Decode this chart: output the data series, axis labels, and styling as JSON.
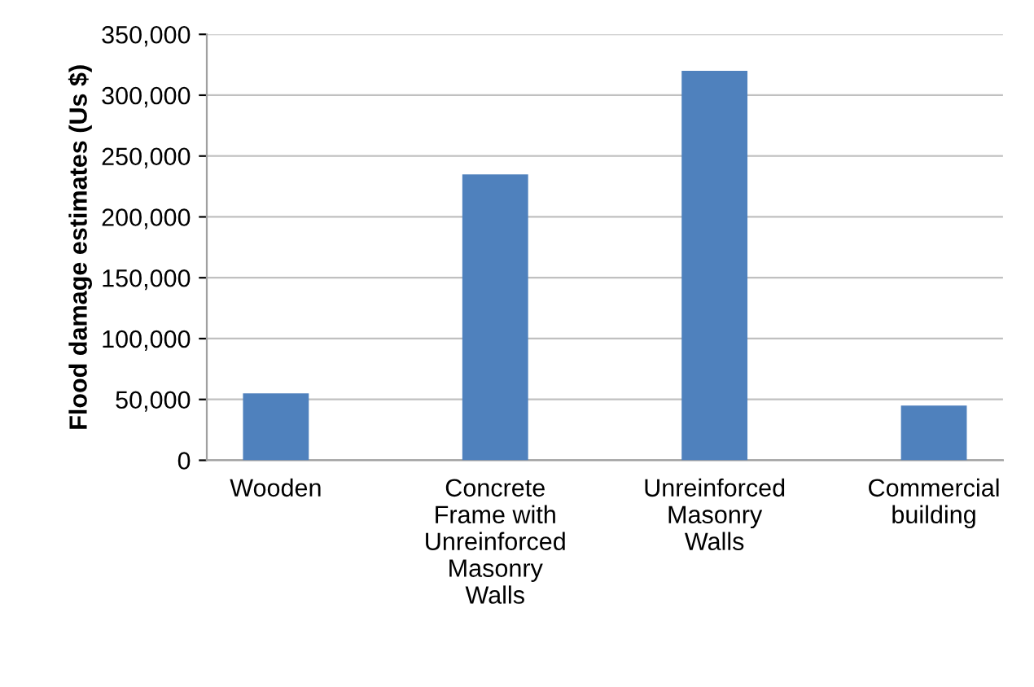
{
  "chart_data": {
    "type": "bar",
    "ylabel": "Flood damage estimates (Us $)",
    "categories": [
      "Wooden",
      "Concrete\nFrame with\nUnreinforced\nMasonry\nWalls",
      "Unreinforced\nMasonry\nWalls",
      "Commercial\nbuilding"
    ],
    "values": [
      55000,
      235000,
      320000,
      45000
    ],
    "color": "#4f81bd",
    "ylim": [
      0,
      350000
    ],
    "yticks": [
      {
        "value": 0,
        "label": "0"
      },
      {
        "value": 50000,
        "label": "50,000"
      },
      {
        "value": 100000,
        "label": "100,000"
      },
      {
        "value": 150000,
        "label": "150,000"
      },
      {
        "value": 200000,
        "label": "200,000"
      },
      {
        "value": 250000,
        "label": "250,000"
      },
      {
        "value": 300000,
        "label": "300,000"
      },
      {
        "value": 350000,
        "label": "350,000"
      }
    ],
    "grid": "y"
  }
}
